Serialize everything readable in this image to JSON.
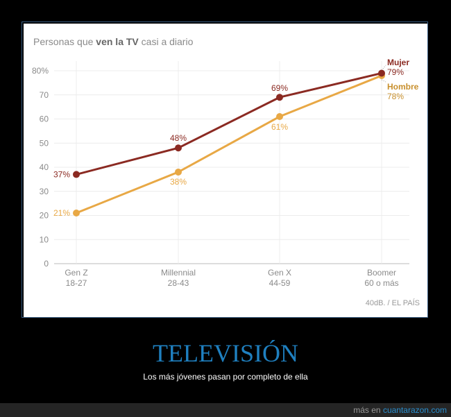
{
  "chart_data": {
    "type": "line",
    "title_parts": [
      "Personas que ",
      "ven la TV",
      " casi a diario"
    ],
    "categories": [
      "Gen Z",
      "Millennial",
      "Gen X",
      "Boomer"
    ],
    "category_sublabels": [
      "18-27",
      "28-43",
      "44-59",
      "60 o más"
    ],
    "yticks": [
      "0",
      "10",
      "20",
      "30",
      "40",
      "50",
      "60",
      "70",
      "80%"
    ],
    "ylim": [
      0,
      80
    ],
    "grid": true,
    "series": [
      {
        "name": "Mujer",
        "color": "#8b2a22",
        "values": [
          37,
          48,
          69,
          79
        ],
        "labels": [
          "37%",
          "48%",
          "69%",
          "79%"
        ]
      },
      {
        "name": "Hombre",
        "color": "#e8a845",
        "values": [
          21,
          38,
          61,
          78
        ],
        "labels": [
          "21%",
          "38%",
          "61%",
          "78%"
        ]
      }
    ],
    "source": "40dB. / EL PAÍS"
  },
  "caption": {
    "title": "TELEVISIÓN",
    "subtitle": "Los más jóvenes pasan por completo de ella"
  },
  "footer": {
    "prefix": "más en ",
    "link": "cuantarazon.com"
  }
}
